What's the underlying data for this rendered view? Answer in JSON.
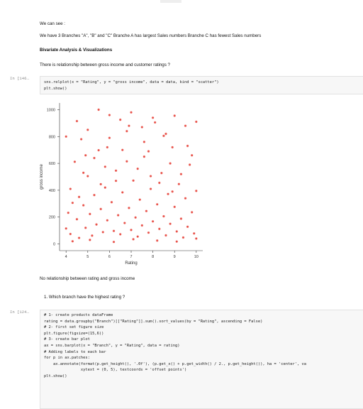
{
  "text": {
    "we_can_see": "We can see :",
    "branches_line": "We have 3 Branches \"A\", \"B\" and \"C\" Branche A has largest Sales numbers Branche C has fewest Sales numbers",
    "bivariate_heading": "Bivariate Analysis & Visualizations",
    "relationship_line": "There is relationship between gross income and customer ratings ?",
    "no_relationship": "No relationship between rating and gross income",
    "question_1": "1. Which branch have the highest rating ?"
  },
  "cells": [
    {
      "prompt": "In [146…",
      "lines": [
        "sns.relplot(x = \"Rating\", y = \"gross income\", data = data, kind = \"scatter\")",
        "plt.show()"
      ]
    },
    {
      "prompt": "In [124…",
      "lines": [
        "# 1- create products dataFrame",
        "rating = data.groupby(\"Branch\")[[\"Rating\"]].sum().sort_values(by = \"Rating\", ascending = False)",
        "",
        "# 2- first set figure size",
        "plt.figure(figsize=(15,6))",
        "",
        "# 3- create bar plot",
        "ax = sns.barplot(x = \"Branch\", y = \"Rating\", data = rating)",
        "",
        "# Adding labels to each bar",
        "for p in ax.patches:",
        "    ax.annotate(format(p.get_height(), '.0f'), (p.get_x() + p.get_width() / 2., p.get_height()), ha = 'center', va",
        "                xytext = (0, 5), textcoords = 'offset points')",
        "",
        "plt.show()"
      ]
    }
  ],
  "chart_data": {
    "type": "scatter",
    "xlabel": "Rating",
    "ylabel": "gross income",
    "xlim": [
      3.7,
      10.3
    ],
    "ylim": [
      -50,
      1050
    ],
    "xticks": [
      4,
      5,
      6,
      7,
      8,
      9,
      10
    ],
    "yticks": [
      0,
      200,
      400,
      600,
      800,
      1000
    ],
    "grid": false,
    "color": "#e8524a",
    "points": [
      [
        4.0,
        115
      ],
      [
        4.1,
        232
      ],
      [
        4.2,
        74
      ],
      [
        4.3,
        306
      ],
      [
        4.4,
        612
      ],
      [
        4.5,
        184
      ],
      [
        4.6,
        45
      ],
      [
        4.7,
        780
      ],
      [
        4.8,
        288
      ],
      [
        4.9,
        120
      ],
      [
        5.0,
        505
      ],
      [
        5.1,
        223
      ],
      [
        5.2,
        62
      ],
      [
        5.3,
        364
      ],
      [
        5.4,
        145
      ],
      [
        5.5,
        698
      ],
      [
        5.6,
        260
      ],
      [
        5.7,
        88
      ],
      [
        5.8,
        420
      ],
      [
        5.9,
        176
      ],
      [
        6.0,
        960
      ],
      [
        6.1,
        311
      ],
      [
        6.2,
        97
      ],
      [
        6.3,
        546
      ],
      [
        6.4,
        214
      ],
      [
        6.5,
        72
      ],
      [
        6.6,
        384
      ],
      [
        6.7,
        156
      ],
      [
        6.8,
        840
      ],
      [
        6.9,
        268
      ],
      [
        7.0,
        104
      ],
      [
        7.1,
        472
      ],
      [
        7.2,
        197
      ],
      [
        7.3,
        55
      ],
      [
        7.4,
        330
      ],
      [
        7.5,
        138
      ],
      [
        7.6,
        650
      ],
      [
        7.7,
        245
      ],
      [
        7.8,
        84
      ],
      [
        7.9,
        410
      ],
      [
        8.0,
        168
      ],
      [
        8.1,
        905
      ],
      [
        8.2,
        295
      ],
      [
        8.3,
        112
      ],
      [
        8.4,
        528
      ],
      [
        8.5,
        206
      ],
      [
        8.6,
        64
      ],
      [
        8.7,
        372
      ],
      [
        8.8,
        150
      ],
      [
        8.9,
        720
      ],
      [
        9.0,
        276
      ],
      [
        9.1,
        93
      ],
      [
        9.2,
        446
      ],
      [
        9.3,
        188
      ],
      [
        9.4,
        48
      ],
      [
        9.5,
        340
      ],
      [
        9.6,
        128
      ],
      [
        9.7,
        590
      ],
      [
        9.8,
        236
      ],
      [
        9.9,
        78
      ],
      [
        10.0,
        395
      ],
      [
        4.0,
        800
      ],
      [
        4.5,
        915
      ],
      [
        5.0,
        850
      ],
      [
        5.5,
        1000
      ],
      [
        6.0,
        790
      ],
      [
        6.5,
        925
      ],
      [
        7.0,
        980
      ],
      [
        7.5,
        870
      ],
      [
        8.0,
        940
      ],
      [
        8.5,
        805
      ],
      [
        9.0,
        955
      ],
      [
        9.5,
        880
      ],
      [
        10.0,
        910
      ],
      [
        4.2,
        410
      ],
      [
        4.8,
        530
      ],
      [
        5.3,
        640
      ],
      [
        5.8,
        575
      ],
      [
        6.3,
        470
      ],
      [
        6.8,
        615
      ],
      [
        7.3,
        560
      ],
      [
        7.8,
        690
      ],
      [
        8.3,
        455
      ],
      [
        8.8,
        600
      ],
      [
        9.3,
        520
      ],
      [
        9.8,
        660
      ],
      [
        4.3,
        20
      ],
      [
        5.1,
        30
      ],
      [
        6.2,
        15
      ],
      [
        7.1,
        35
      ],
      [
        8.2,
        25
      ],
      [
        9.1,
        18
      ],
      [
        10.0,
        40
      ],
      [
        4.6,
        350
      ],
      [
        5.6,
        445
      ],
      [
        6.6,
        700
      ],
      [
        7.6,
        760
      ],
      [
        8.6,
        820
      ],
      [
        9.6,
        730
      ],
      [
        4.9,
        660
      ],
      [
        5.9,
        720
      ],
      [
        6.9,
        880
      ],
      [
        7.9,
        505
      ],
      [
        8.9,
        390
      ]
    ]
  }
}
